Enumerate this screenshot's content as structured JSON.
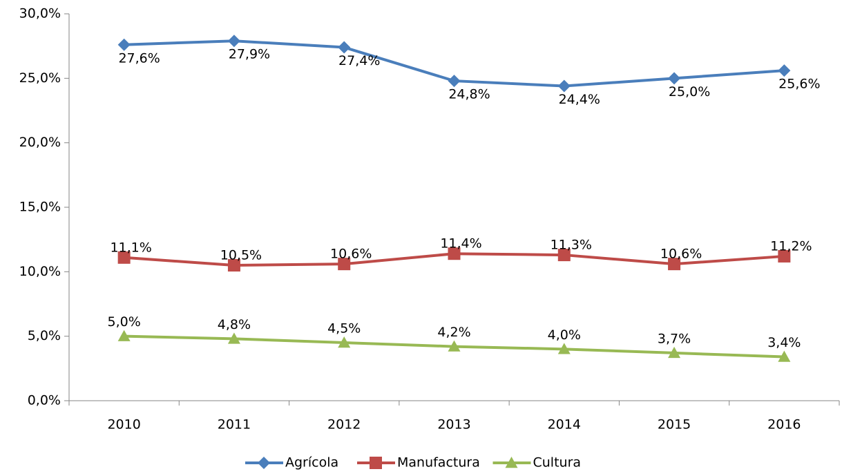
{
  "chart_data": {
    "type": "line",
    "categories": [
      "2010",
      "2011",
      "2012",
      "2013",
      "2014",
      "2015",
      "2016"
    ],
    "series": [
      {
        "name": "Agrícola",
        "color": "#4a7ebb",
        "marker": "diamond",
        "values": [
          27.6,
          27.9,
          27.4,
          24.8,
          24.4,
          25.0,
          25.6
        ],
        "value_labels": [
          "27,6%",
          "27,9%",
          "27,4%",
          "24,8%",
          "24,4%",
          "25,0%",
          "25,6%"
        ]
      },
      {
        "name": "Manufactura",
        "color": "#be4b48",
        "marker": "square",
        "values": [
          11.1,
          10.5,
          10.6,
          11.4,
          11.3,
          10.6,
          11.2
        ],
        "value_labels": [
          "11,1%",
          "10,5%",
          "10,6%",
          "11,4%",
          "11,3%",
          "10,6%",
          "11,2%"
        ]
      },
      {
        "name": "Cultura",
        "color": "#98b954",
        "marker": "triangle",
        "values": [
          5.0,
          4.8,
          4.5,
          4.2,
          4.0,
          3.7,
          3.4
        ],
        "value_labels": [
          "5,0%",
          "4,8%",
          "4,5%",
          "4,2%",
          "4,0%",
          "3,7%",
          "3,4%"
        ]
      }
    ],
    "ylim": [
      0,
      30
    ],
    "yticks": [
      {
        "value": 0,
        "label": "0,0%"
      },
      {
        "value": 5,
        "label": "5,0%"
      },
      {
        "value": 10,
        "label": "10,0%"
      },
      {
        "value": 15,
        "label": "15,0%"
      },
      {
        "value": 20,
        "label": "20,0%"
      },
      {
        "value": 25,
        "label": "25,0%"
      },
      {
        "value": 30,
        "label": "30,0%"
      }
    ],
    "grid": false,
    "legend": "bottom"
  }
}
